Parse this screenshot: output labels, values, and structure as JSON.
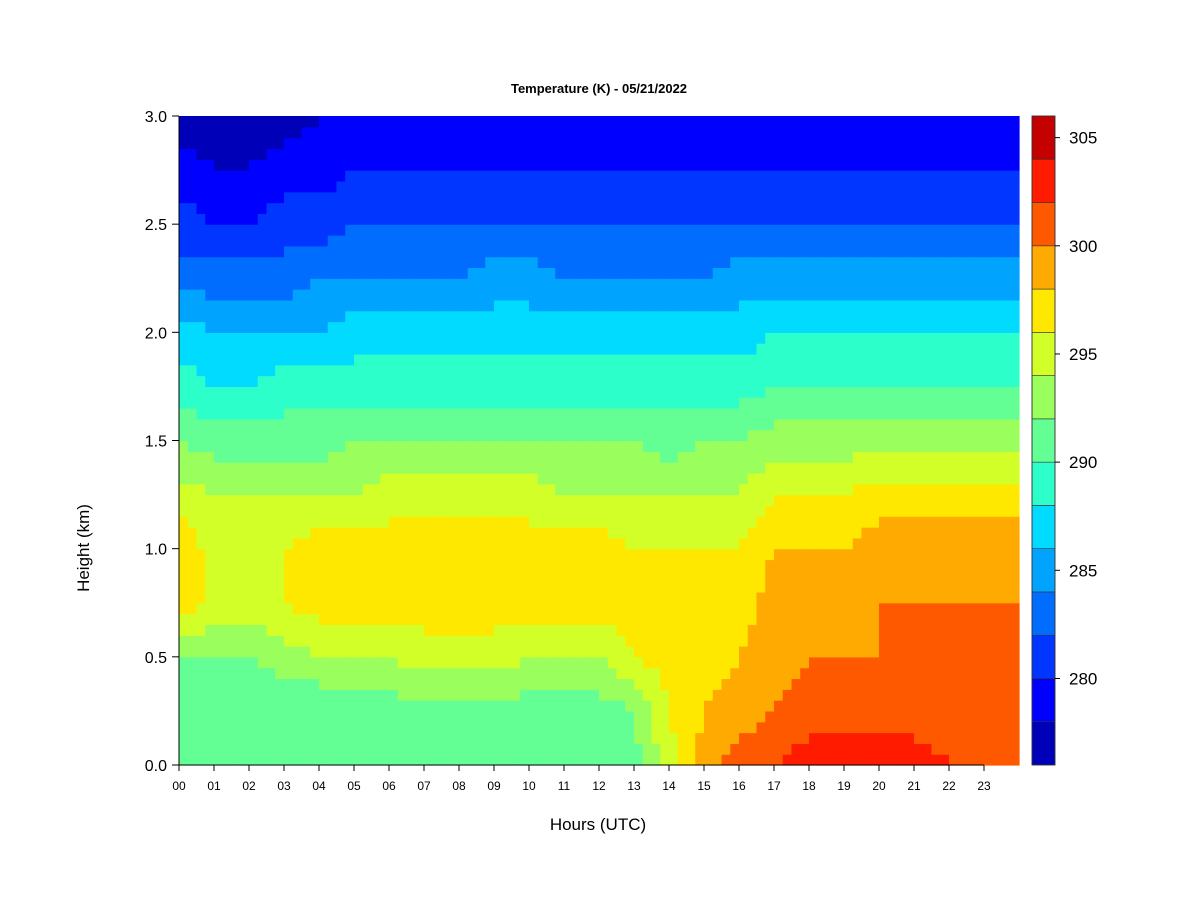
{
  "chart_data": {
    "type": "heatmap",
    "title": "Temperature (K) - 05/21/2022",
    "xlabel": "Hours (UTC)",
    "ylabel": "Height (km)",
    "xlim": [
      0,
      24
    ],
    "ylim": [
      0.0,
      3.0
    ],
    "x_ticks": [
      "00",
      "01",
      "02",
      "03",
      "04",
      "05",
      "06",
      "07",
      "08",
      "09",
      "10",
      "11",
      "12",
      "13",
      "14",
      "15",
      "16",
      "17",
      "18",
      "19",
      "20",
      "21",
      "22",
      "23"
    ],
    "y_ticks": [
      "0.0",
      "0.5",
      "1.0",
      "1.5",
      "2.0",
      "2.5",
      "3.0"
    ],
    "colorbar": {
      "label_values": [
        280,
        285,
        290,
        295,
        300,
        305
      ],
      "labels": [
        "280",
        "285",
        "290",
        "295",
        "300",
        "305"
      ],
      "levels": [
        276,
        278,
        280,
        282,
        284,
        286,
        288,
        290,
        292,
        294,
        296,
        298,
        300,
        302,
        304,
        306
      ],
      "colors": [
        "#00007f",
        "#0000b8",
        "#0000ff",
        "#0036ff",
        "#006dff",
        "#00a4ff",
        "#00dbff",
        "#2dffca",
        "#63ff94",
        "#9aff5d",
        "#d1ff27",
        "#ffe800",
        "#ffaa00",
        "#ff5900",
        "#ff1b00",
        "#c40000",
        "#7f0000"
      ]
    },
    "grid": false,
    "heights_km": [
      0.0,
      0.25,
      0.5,
      0.75,
      1.0,
      1.25,
      1.5,
      1.75,
      2.0,
      2.25,
      2.5,
      2.75,
      3.0
    ],
    "series": [
      {
        "hour": 0,
        "temps_K": [
          291,
          291,
          292,
          298,
          298,
          295,
          292,
          289,
          287,
          283,
          281,
          279,
          277
        ]
      },
      {
        "hour": 1,
        "temps_K": [
          290,
          290,
          292,
          295,
          295,
          294,
          291,
          288,
          286,
          283,
          280,
          278,
          277
        ]
      },
      {
        "hour": 2,
        "temps_K": [
          290,
          290,
          292,
          295,
          295,
          294,
          291,
          288,
          286,
          283,
          280,
          278,
          277
        ]
      },
      {
        "hour": 3,
        "temps_K": [
          290,
          290,
          293,
          296,
          296,
          294,
          291,
          289,
          286,
          283,
          281,
          279,
          277
        ]
      },
      {
        "hour": 4,
        "temps_K": [
          290,
          290,
          294,
          297,
          297,
          294,
          291,
          289,
          286,
          284,
          281,
          279,
          278
        ]
      },
      {
        "hour": 5,
        "temps_K": [
          290,
          291,
          294,
          297,
          297,
          294,
          292,
          289,
          287,
          284,
          282,
          280,
          278
        ]
      },
      {
        "hour": 6,
        "temps_K": [
          290,
          291,
          294,
          297,
          297,
          295,
          292,
          289,
          287,
          284,
          282,
          280,
          278
        ]
      },
      {
        "hour": 7,
        "temps_K": [
          290,
          291,
          295,
          297,
          297,
          295,
          292,
          289,
          287,
          284,
          282,
          280,
          278
        ]
      },
      {
        "hour": 8,
        "temps_K": [
          290,
          291,
          295,
          298,
          297,
          295,
          292,
          289,
          287,
          284,
          282,
          280,
          278
        ]
      },
      {
        "hour": 9,
        "temps_K": [
          290,
          291,
          295,
          297,
          297,
          295,
          292,
          289,
          287,
          285,
          282,
          280,
          279
        ]
      },
      {
        "hour": 10,
        "temps_K": [
          290,
          291,
          294,
          297,
          297,
          295,
          292,
          289,
          287,
          285,
          282,
          280,
          279
        ]
      },
      {
        "hour": 11,
        "temps_K": [
          290,
          291,
          294,
          297,
          297,
          294,
          292,
          289,
          287,
          284,
          282,
          280,
          278
        ]
      },
      {
        "hour": 12,
        "temps_K": [
          290,
          291,
          294,
          297,
          297,
          294,
          292,
          289,
          287,
          284,
          282,
          280,
          278
        ]
      },
      {
        "hour": 13,
        "temps_K": [
          291,
          292,
          296,
          297,
          296,
          294,
          292,
          289,
          287,
          284,
          282,
          280,
          278
        ]
      },
      {
        "hour": 14,
        "temps_K": [
          295,
          296,
          297,
          297,
          296,
          294,
          291,
          289,
          287,
          284,
          282,
          280,
          278
        ]
      },
      {
        "hour": 15,
        "temps_K": [
          299,
          298,
          297,
          297,
          296,
          294,
          292,
          289,
          287,
          284,
          282,
          280,
          278
        ]
      },
      {
        "hour": 16,
        "temps_K": [
          301,
          299,
          298,
          297,
          296,
          294,
          292,
          289,
          287,
          285,
          282,
          280,
          278
        ]
      },
      {
        "hour": 17,
        "temps_K": [
          302,
          300,
          299,
          299,
          298,
          296,
          293,
          290,
          288,
          285,
          282,
          280,
          278
        ]
      },
      {
        "hour": 18,
        "temps_K": [
          303,
          301,
          300,
          299,
          298,
          296,
          293,
          290,
          288,
          285,
          282,
          280,
          278
        ]
      },
      {
        "hour": 19,
        "temps_K": [
          304,
          301,
          300,
          299,
          298,
          296,
          293,
          290,
          288,
          285,
          282,
          280,
          279
        ]
      },
      {
        "hour": 20,
        "temps_K": [
          304,
          301,
          300,
          300,
          299,
          297,
          293,
          290,
          288,
          285,
          282,
          280,
          279
        ]
      },
      {
        "hour": 21,
        "temps_K": [
          303,
          301,
          301,
          300,
          299,
          297,
          293,
          290,
          288,
          285,
          282,
          280,
          279
        ]
      },
      {
        "hour": 22,
        "temps_K": [
          302,
          301,
          301,
          300,
          299,
          297,
          293,
          290,
          288,
          285,
          282,
          280,
          278
        ]
      },
      {
        "hour": 23,
        "temps_K": [
          302,
          301,
          301,
          300,
          299,
          297,
          293,
          290,
          288,
          285,
          282,
          280,
          278
        ]
      },
      {
        "hour": 24,
        "temps_K": [
          302,
          301,
          301,
          300,
          299,
          297,
          293,
          290,
          288,
          285,
          282,
          280,
          278
        ]
      }
    ]
  }
}
